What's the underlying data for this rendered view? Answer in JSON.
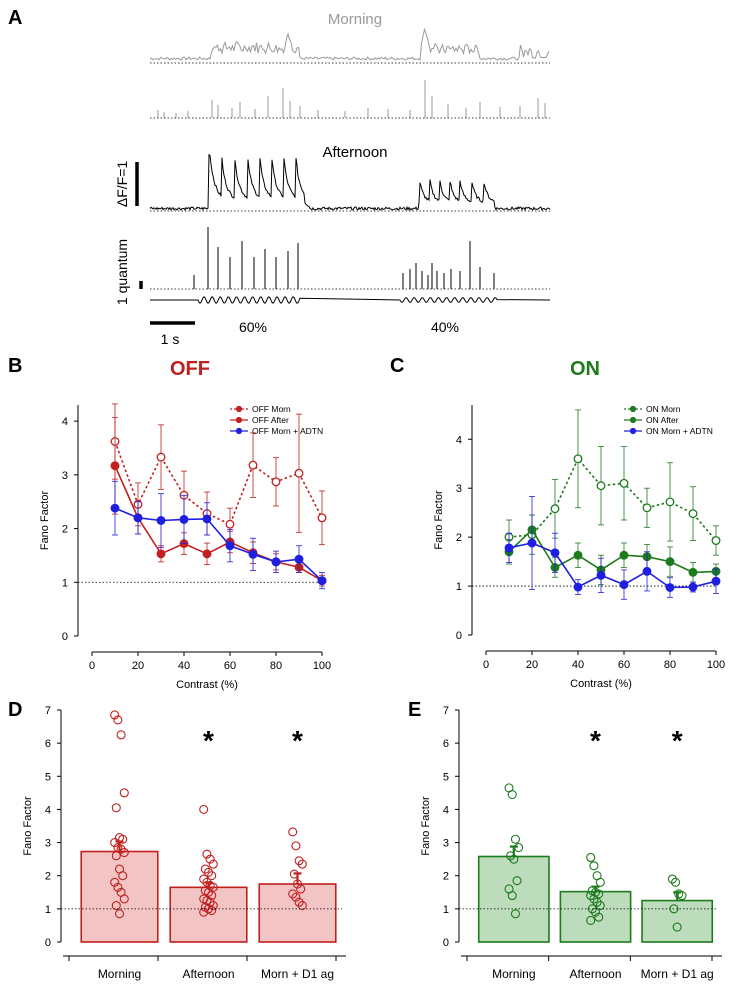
{
  "panels": {
    "A": {
      "letter": "A",
      "morning_label": "Morning",
      "afternoon_label": "Afternoon",
      "scale_dff": "ΔF/F=1",
      "scale_quantum": "1 quantum",
      "scale_time": "1 s",
      "contrast_1": "60%",
      "contrast_2": "40%",
      "colors": {
        "morning": "#999999",
        "afternoon": "#000000"
      }
    },
    "B": {
      "letter": "B",
      "title": "OFF"
    },
    "C": {
      "letter": "C",
      "title": "ON"
    },
    "D": {
      "letter": "D"
    },
    "E": {
      "letter": "E"
    }
  },
  "chart_data": [
    {
      "id": "B",
      "type": "line",
      "title": "OFF",
      "xlabel": "Contrast (%)",
      "ylabel": "Fano Factor",
      "xlim": [
        0,
        100
      ],
      "ylim": [
        0,
        4.3
      ],
      "xticks": [
        0,
        20,
        40,
        60,
        80,
        100
      ],
      "yticks": [
        0,
        1,
        2,
        3,
        4
      ],
      "reference_line": 1,
      "legend_position": "top-right",
      "x": [
        10,
        20,
        30,
        40,
        50,
        60,
        70,
        80,
        90,
        100
      ],
      "series": [
        {
          "name": "OFF Morn",
          "color": "#c0201e",
          "dash": true,
          "open": true,
          "values": [
            3.62,
            2.45,
            3.33,
            2.62,
            2.28,
            2.08,
            3.18,
            2.87,
            3.03,
            2.2
          ],
          "err": [
            0.7,
            0.4,
            0.6,
            0.45,
            0.4,
            0.3,
            0.6,
            0.45,
            1.1,
            0.5
          ]
        },
        {
          "name": "OFF After",
          "color": "#c0201e",
          "dash": false,
          "open": false,
          "values": [
            3.17,
            2.2,
            1.53,
            1.72,
            1.53,
            1.75,
            1.55,
            1.38,
            1.28,
            1.03
          ],
          "err": [
            0.9,
            0.3,
            0.15,
            0.2,
            0.2,
            0.2,
            0.2,
            0.15,
            0.1,
            0.1
          ]
        },
        {
          "name": "OFF Morn + ADTN",
          "color": "#1f1fe0",
          "dash": false,
          "open": false,
          "values": [
            2.38,
            2.2,
            2.15,
            2.17,
            2.18,
            1.68,
            1.52,
            1.38,
            1.43,
            1.03
          ],
          "err": [
            0.5,
            0.3,
            0.5,
            0.45,
            0.3,
            0.3,
            0.3,
            0.2,
            0.25,
            0.15
          ]
        }
      ]
    },
    {
      "id": "C",
      "type": "line",
      "title": "ON",
      "xlabel": "Contrast (%)",
      "ylabel": "Fano Factor",
      "xlim": [
        0,
        100
      ],
      "ylim": [
        0,
        4.7
      ],
      "xticks": [
        0,
        20,
        40,
        60,
        80,
        100
      ],
      "yticks": [
        0,
        1,
        2,
        3,
        4
      ],
      "reference_line": 1,
      "legend_position": "top-right",
      "x": [
        10,
        20,
        30,
        40,
        50,
        60,
        70,
        80,
        90,
        100
      ],
      "series": [
        {
          "name": "ON Morn",
          "color": "#1d7a1d",
          "dash": true,
          "open": true,
          "values": [
            2.0,
            2.05,
            2.58,
            3.6,
            3.05,
            3.1,
            2.6,
            2.72,
            2.48,
            1.93
          ],
          "err": [
            0.35,
            0.4,
            0.6,
            1.0,
            0.8,
            0.75,
            0.4,
            0.8,
            0.55,
            0.3
          ]
        },
        {
          "name": "ON After",
          "color": "#1d7a1d",
          "dash": false,
          "open": false,
          "values": [
            1.7,
            2.15,
            1.38,
            1.63,
            1.33,
            1.63,
            1.6,
            1.5,
            1.28,
            1.3
          ],
          "err": [
            0.25,
            0.3,
            0.2,
            0.25,
            0.3,
            0.25,
            0.25,
            0.3,
            0.2,
            0.15
          ]
        },
        {
          "name": "ON Morn + ADTN",
          "color": "#1f1fe0",
          "dash": false,
          "open": false,
          "values": [
            1.78,
            1.88,
            1.68,
            0.98,
            1.22,
            1.03,
            1.3,
            0.97,
            0.98,
            1.1
          ],
          "err": [
            0.3,
            0.95,
            0.4,
            0.15,
            0.35,
            0.3,
            0.4,
            0.2,
            0.1,
            0.25
          ]
        }
      ]
    },
    {
      "id": "D",
      "type": "bar",
      "ylabel": "Fano Factor",
      "ylim": [
        0,
        7
      ],
      "yticks": [
        0,
        1,
        2,
        3,
        4,
        5,
        6,
        7
      ],
      "reference_line": 1,
      "color": "#c0201e",
      "fill": "#f3c4c4",
      "categories": [
        "Morning",
        "Afternoon",
        "Morn + D1 ag"
      ],
      "values": [
        2.73,
        1.65,
        1.75
      ],
      "err": [
        0.3,
        0.15,
        0.32
      ],
      "significance": [
        "",
        "*",
        "*"
      ],
      "points": [
        [
          6.85,
          6.7,
          6.25,
          4.5,
          4.05,
          3.15,
          3.1,
          3.0,
          2.85,
          2.8,
          2.7,
          2.6,
          2.2,
          2.0,
          1.8,
          1.65,
          1.5,
          1.3,
          1.1,
          0.85
        ],
        [
          4.0,
          2.65,
          2.5,
          2.35,
          2.2,
          2.1,
          2.0,
          1.9,
          1.8,
          1.7,
          1.65,
          1.55,
          1.5,
          1.4,
          1.3,
          1.25,
          1.2,
          1.1,
          1.05,
          1.0,
          0.95,
          0.9
        ],
        [
          3.32,
          2.9,
          2.45,
          2.35,
          2.05,
          1.75,
          1.6,
          1.45,
          1.35,
          1.2,
          1.1
        ]
      ]
    },
    {
      "id": "E",
      "type": "bar",
      "ylabel": "Fano Factor",
      "ylim": [
        0,
        7
      ],
      "yticks": [
        0,
        1,
        2,
        3,
        4,
        5,
        6,
        7
      ],
      "reference_line": 1,
      "color": "#1d7a1d",
      "fill": "#bcdcbc",
      "categories": [
        "Morning",
        "Afternoon",
        "Morn + D1 ag"
      ],
      "values": [
        2.58,
        1.52,
        1.25
      ],
      "err": [
        0.3,
        0.15,
        0.25
      ],
      "significance": [
        "",
        "*",
        "*"
      ],
      "points": [
        [
          4.65,
          4.45,
          3.1,
          2.85,
          2.6,
          2.5,
          1.85,
          1.6,
          1.4,
          0.85
        ],
        [
          2.55,
          2.3,
          2.0,
          1.8,
          1.55,
          1.5,
          1.45,
          1.4,
          1.3,
          1.2,
          1.1,
          1.0,
          0.9,
          0.75,
          0.65
        ],
        [
          1.9,
          1.8,
          1.45,
          1.4,
          1.0,
          0.45
        ]
      ]
    }
  ]
}
